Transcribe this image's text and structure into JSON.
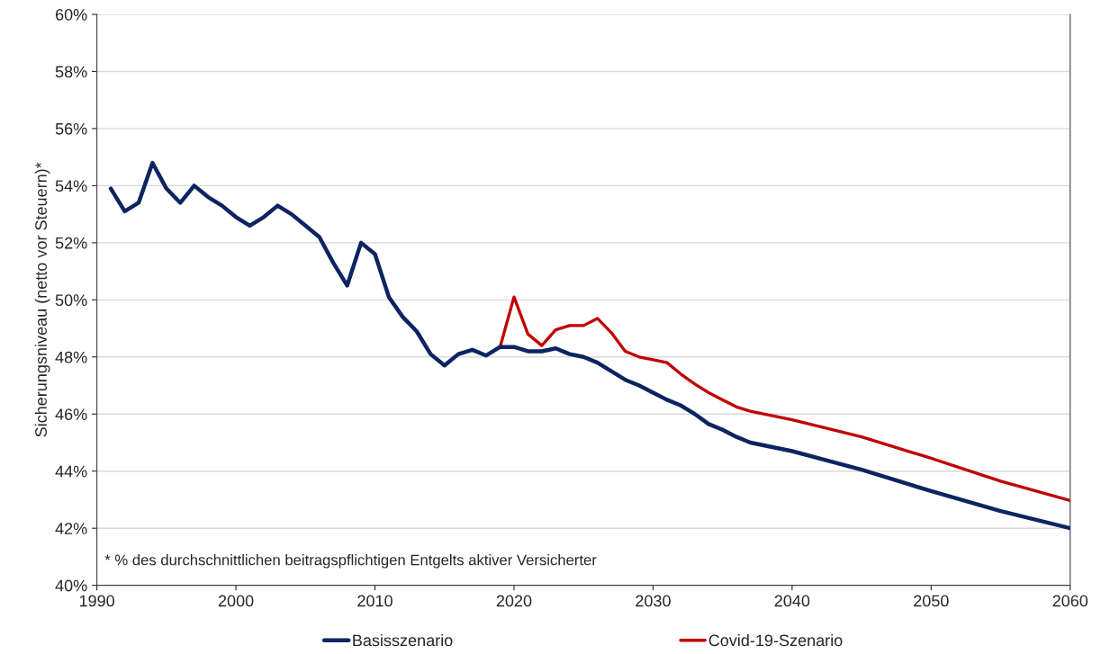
{
  "chart_data": {
    "type": "line",
    "ylabel": "Sicherungsniveau (netto vor Steuern)*",
    "xlim": [
      1990,
      2060
    ],
    "xticks": [
      1990,
      2000,
      2010,
      2020,
      2030,
      2040,
      2050,
      2060
    ],
    "ylim": [
      40,
      60
    ],
    "yticks": [
      {
        "value": 40,
        "label": "40%"
      },
      {
        "value": 42,
        "label": "42%"
      },
      {
        "value": 44,
        "label": "44%"
      },
      {
        "value": 46,
        "label": "46%"
      },
      {
        "value": 48,
        "label": "48%"
      },
      {
        "value": 50,
        "label": "50%"
      },
      {
        "value": 52,
        "label": "52%"
      },
      {
        "value": 54,
        "label": "54%"
      },
      {
        "value": 56,
        "label": "56%"
      },
      {
        "value": 58,
        "label": "58%"
      },
      {
        "value": 60,
        "label": "60%"
      }
    ],
    "grid": "y",
    "legend": "bottom",
    "line_style": "solid",
    "annotations": [
      "* % des durchschnittlichen beitragspflichtigen Entgelts aktiver Versicherter"
    ],
    "series": [
      {
        "name": "Basisszenario",
        "color": "#0c2461",
        "x": [
          1991,
          1992,
          1993,
          1994,
          1995,
          1996,
          1997,
          1998,
          1999,
          2000,
          2001,
          2002,
          2003,
          2004,
          2005,
          2006,
          2007,
          2008,
          2009,
          2010,
          2011,
          2012,
          2013,
          2014,
          2015,
          2016,
          2017,
          2018,
          2019,
          2020,
          2021,
          2022,
          2023,
          2024,
          2025,
          2026,
          2027,
          2028,
          2029,
          2030,
          2031,
          2032,
          2033,
          2034,
          2035,
          2036,
          2037,
          2040,
          2045,
          2050,
          2055,
          2060
        ],
        "values": [
          53.9,
          53.1,
          53.4,
          54.8,
          53.9,
          53.4,
          54.0,
          53.6,
          53.3,
          52.9,
          52.6,
          52.9,
          53.3,
          53.0,
          52.6,
          52.2,
          51.3,
          50.5,
          52.0,
          51.6,
          50.1,
          49.4,
          48.9,
          48.1,
          47.7,
          48.1,
          48.25,
          48.05,
          48.35,
          48.35,
          48.2,
          48.2,
          48.3,
          48.1,
          48.0,
          47.8,
          47.5,
          47.2,
          47.0,
          46.75,
          46.5,
          46.3,
          46.0,
          45.65,
          45.45,
          45.2,
          45.0,
          44.7,
          44.05,
          43.3,
          42.6,
          42.0
        ]
      },
      {
        "name": "Covid-19-Szenario",
        "color": "#c00000",
        "x": [
          2019,
          2020,
          2021,
          2022,
          2023,
          2024,
          2025,
          2026,
          2027,
          2028,
          2029,
          2030,
          2031,
          2032,
          2033,
          2034,
          2035,
          2036,
          2037,
          2040,
          2045,
          2050,
          2055,
          2060
        ],
        "values": [
          48.35,
          50.1,
          48.8,
          48.4,
          48.95,
          49.1,
          49.1,
          49.35,
          48.85,
          48.2,
          48.0,
          47.9,
          47.8,
          47.4,
          47.05,
          46.75,
          46.5,
          46.25,
          46.1,
          45.8,
          45.2,
          44.45,
          43.65,
          42.97
        ]
      }
    ]
  }
}
